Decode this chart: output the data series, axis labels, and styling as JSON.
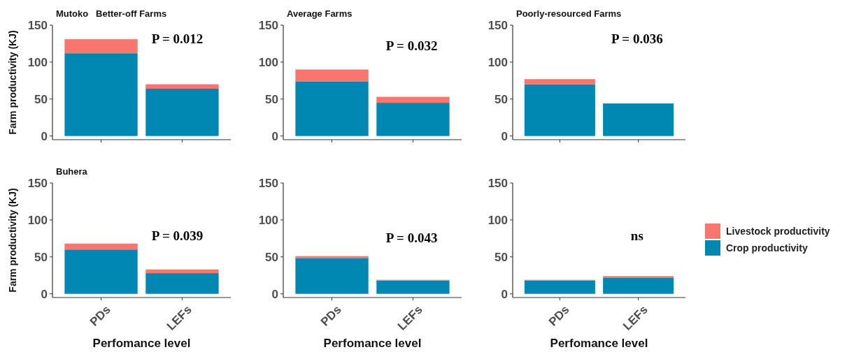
{
  "chart_data": [
    {
      "type": "bar",
      "title": "Mutoko   Better-off Farms",
      "ylabel": "Farm productivity (KJ)",
      "categories": [
        null,
        null
      ],
      "stacked": true,
      "ylim": [
        -5,
        150
      ],
      "yticks": [
        0,
        50,
        100,
        150
      ],
      "tick_labels": "y",
      "annotations": [
        "P = 0.012"
      ],
      "series": [
        {
          "color": "#0088b3",
          "values": [
            112,
            64
          ]
        },
        {
          "color": "#f8766d",
          "values": [
            19,
            6
          ]
        }
      ]
    },
    {
      "type": "bar",
      "title": "Average Farms",
      "categories": [
        null,
        null
      ],
      "stacked": true,
      "ylim": [
        -5,
        150
      ],
      "yticks": [
        0,
        50,
        100,
        150
      ],
      "tick_labels": "y",
      "annotations": [
        "P = 0.032"
      ],
      "series": [
        {
          "color": "#0088b3",
          "values": [
            74,
            45
          ]
        },
        {
          "color": "#f8766d",
          "values": [
            16,
            8
          ]
        }
      ]
    },
    {
      "type": "bar",
      "title": "Poorly-resourced Farms",
      "categories": [
        null,
        null
      ],
      "stacked": true,
      "ylim": [
        -5,
        150
      ],
      "yticks": [
        0,
        50,
        100,
        150
      ],
      "tick_labels": "y",
      "annotations": [
        "P = 0.036"
      ],
      "series": [
        {
          "color": "#0088b3",
          "values": [
            70,
            44
          ]
        },
        {
          "color": "#f8766d",
          "values": [
            7,
            0
          ]
        }
      ]
    },
    {
      "type": "bar",
      "title": "Buhera",
      "ylabel": "Farm productivity (KJ)",
      "xlabel": "Perfomance level",
      "categories": [
        "PDs",
        "LEFs"
      ],
      "stacked": true,
      "ylim": [
        -5,
        150
      ],
      "yticks": [
        0,
        50,
        100,
        150
      ],
      "annotations": [
        "P = 0.039"
      ],
      "series": [
        {
          "color": "#0088b3",
          "values": [
            60,
            28
          ]
        },
        {
          "color": "#f8766d",
          "values": [
            8,
            5
          ]
        }
      ]
    },
    {
      "type": "bar",
      "xlabel": "Perfomance level",
      "categories": [
        "PDs",
        "LEFs"
      ],
      "stacked": true,
      "ylim": [
        -5,
        150
      ],
      "yticks": [
        0,
        50,
        100,
        150
      ],
      "annotations": [
        "P = 0.043"
      ],
      "series": [
        {
          "color": "#0088b3",
          "values": [
            48,
            18
          ]
        },
        {
          "color": "#f8766d",
          "values": [
            3,
            1
          ]
        }
      ]
    },
    {
      "type": "bar",
      "xlabel": "Perfomance level",
      "categories": [
        "PDs",
        "LEFs"
      ],
      "stacked": true,
      "ylim": [
        -5,
        150
      ],
      "yticks": [
        0,
        50,
        100,
        150
      ],
      "annotations": [
        "ns"
      ],
      "legend": "right",
      "series": [
        {
          "name": "Crop productivity",
          "color": "#0088b3",
          "values": [
            18,
            22
          ]
        },
        {
          "name": "Livestock productivity",
          "color": "#f8766d",
          "values": [
            1,
            2
          ]
        }
      ]
    }
  ]
}
